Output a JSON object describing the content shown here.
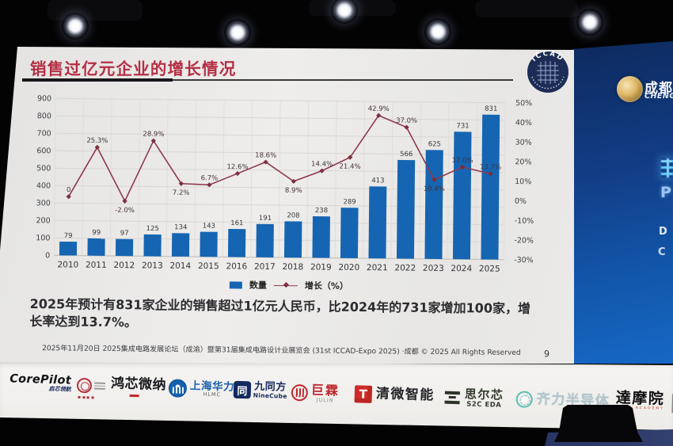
{
  "slide": {
    "title": "销售过亿元企业的增长情况",
    "logo_text": "ICCAD",
    "description": "2025年预计有831家企业的销售超过1亿元人民币，比2024年的731家增加100家，增\n长率达到13.7%。",
    "footer": "2025年11月20日 2025集成电路发展论坛（成渝）暨第31届集成电路设计业展览会 (31st ICCAD-Expo 2025) ·成都 © 2025 All Rights Reserved",
    "page_number": "9"
  },
  "chart_data": {
    "type": "bar",
    "categories": [
      "2010",
      "2011",
      "2012",
      "2013",
      "2014",
      "2015",
      "2016",
      "2017",
      "2018",
      "2019",
      "2020",
      "2021",
      "2022",
      "2023",
      "2024",
      "2025"
    ],
    "series": [
      {
        "name": "数量",
        "type": "bar",
        "values": [
          79,
          99,
          97,
          125,
          134,
          143,
          161,
          191,
          208,
          238,
          289,
          413,
          566,
          625,
          731,
          831
        ]
      },
      {
        "name": "增长（%）",
        "type": "line",
        "values": [
          0,
          25.3,
          -2.0,
          28.9,
          7.2,
          6.7,
          12.6,
          18.6,
          8.9,
          14.4,
          21.4,
          42.9,
          37.0,
          10.4,
          17.0,
          13.7
        ],
        "labels": [
          "0",
          "25.3%",
          "-2.0%",
          "28.9%",
          "7.2%",
          "6.7%",
          "12.6%",
          "18.6%",
          "8.9%",
          "14.4%",
          "21.4%",
          "42.9%",
          "37.0%",
          "10.4%",
          "17.0%",
          "13.7%"
        ],
        "label_pos": [
          "above",
          "above",
          "below",
          "above",
          "below",
          "above",
          "above",
          "above",
          "below",
          "above",
          "below",
          "above",
          "above",
          "below",
          "above",
          "above"
        ]
      }
    ],
    "left_axis": {
      "min": 0,
      "max": 900,
      "step": 100
    },
    "right_axis": {
      "min": -30,
      "max": 50,
      "step": 10
    },
    "ylabel": "",
    "xlabel": "",
    "grid": true,
    "legend_position": "bottom",
    "colors": {
      "bar": "#1565b2",
      "line": "#8e3a4d"
    }
  },
  "wall": {
    "brand_cn": "成都",
    "brand_en": "CHENG",
    "fragment_p": "P",
    "fragment_d": "D",
    "fragment_c": "C"
  },
  "banner": {
    "items": [
      {
        "id": "corepilot",
        "main": "CorePilot",
        "sub": "启芯领航"
      },
      {
        "id": "opensec",
        "main": "",
        "sub": ""
      },
      {
        "id": "hongxin",
        "main": "鸿芯微纳",
        "sub": ""
      },
      {
        "id": "hlmc",
        "main": "上海华力",
        "sub": "HLMC"
      },
      {
        "id": "ninecube",
        "main": "九同方",
        "sub": "NineCube",
        "icon_char": "同"
      },
      {
        "id": "julin",
        "main": "巨霖",
        "sub": "JULIN"
      },
      {
        "id": "qingwei",
        "main": "清微智能",
        "sub": "",
        "icon_char": "T"
      },
      {
        "id": "s2c",
        "main": "思尔芯",
        "sub": "S2C EDA"
      },
      {
        "id": "qili",
        "main": "齐力半导体",
        "sub": ""
      },
      {
        "id": "damo",
        "main": "達摩院",
        "sub": "DAMO ACADEMY"
      }
    ]
  }
}
